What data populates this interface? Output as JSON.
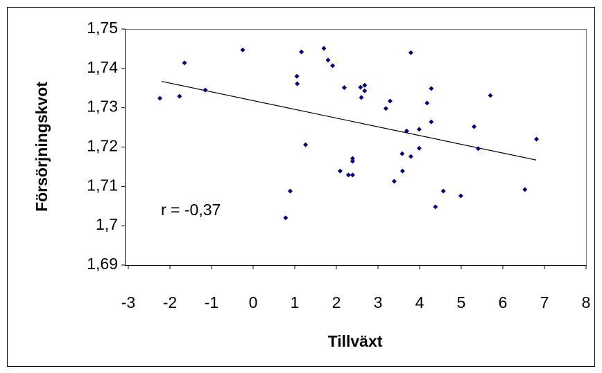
{
  "chart_data": {
    "type": "scatter",
    "xlabel": "Tillväxt",
    "ylabel": "Försörjningskvot",
    "annotation": "r = -0,37",
    "xlim": [
      -3,
      8
    ],
    "xticks": [
      -3,
      -2,
      -1,
      0,
      1,
      2,
      3,
      4,
      5,
      6,
      7,
      8
    ],
    "ylim": [
      1.69,
      1.75
    ],
    "yticks": [
      {
        "value": 1.69,
        "label": "1,69"
      },
      {
        "value": 1.7,
        "label": "1,7"
      },
      {
        "value": 1.71,
        "label": "1,71"
      },
      {
        "value": 1.72,
        "label": "1,72"
      },
      {
        "value": 1.73,
        "label": "1,73"
      },
      {
        "value": 1.74,
        "label": "1,74"
      },
      {
        "value": 1.75,
        "label": "1,75"
      }
    ],
    "series": [
      {
        "color": "#000080",
        "x": [
          -2.24,
          -1.77,
          -1.65,
          -1.15,
          -0.25,
          0.78,
          0.89,
          1.05,
          1.06,
          1.16,
          1.26,
          1.7,
          1.8,
          1.91,
          2.09,
          2.19,
          2.29,
          2.39,
          2.39,
          2.39,
          2.58,
          2.6,
          2.68,
          2.68,
          3.19,
          3.29,
          3.39,
          3.58,
          3.59,
          3.69,
          3.79,
          3.79,
          3.99,
          3.99,
          4.18,
          4.28,
          4.28,
          4.38,
          4.57,
          4.99,
          5.31,
          5.41,
          5.7,
          6.53,
          6.81
        ],
        "values": [
          1.7324,
          1.7329,
          1.7414,
          1.7345,
          1.7447,
          1.702,
          1.7088,
          1.738,
          1.7361,
          1.7442,
          1.7206,
          1.7451,
          1.7421,
          1.7407,
          1.7139,
          1.7351,
          1.7129,
          1.7129,
          1.7171,
          1.7164,
          1.7352,
          1.7326,
          1.7357,
          1.7343,
          1.7298,
          1.7317,
          1.7113,
          1.7183,
          1.7139,
          1.7241,
          1.7176,
          1.744,
          1.7245,
          1.7197,
          1.7312,
          1.7349,
          1.7264,
          1.7048,
          1.7088,
          1.7076,
          1.7252,
          1.7196,
          1.7331,
          1.7092,
          1.722
        ]
      }
    ],
    "trendline": {
      "color": "#000000",
      "x": [
        -2.2,
        6.8
      ],
      "values": [
        1.7367,
        1.7167
      ]
    }
  }
}
